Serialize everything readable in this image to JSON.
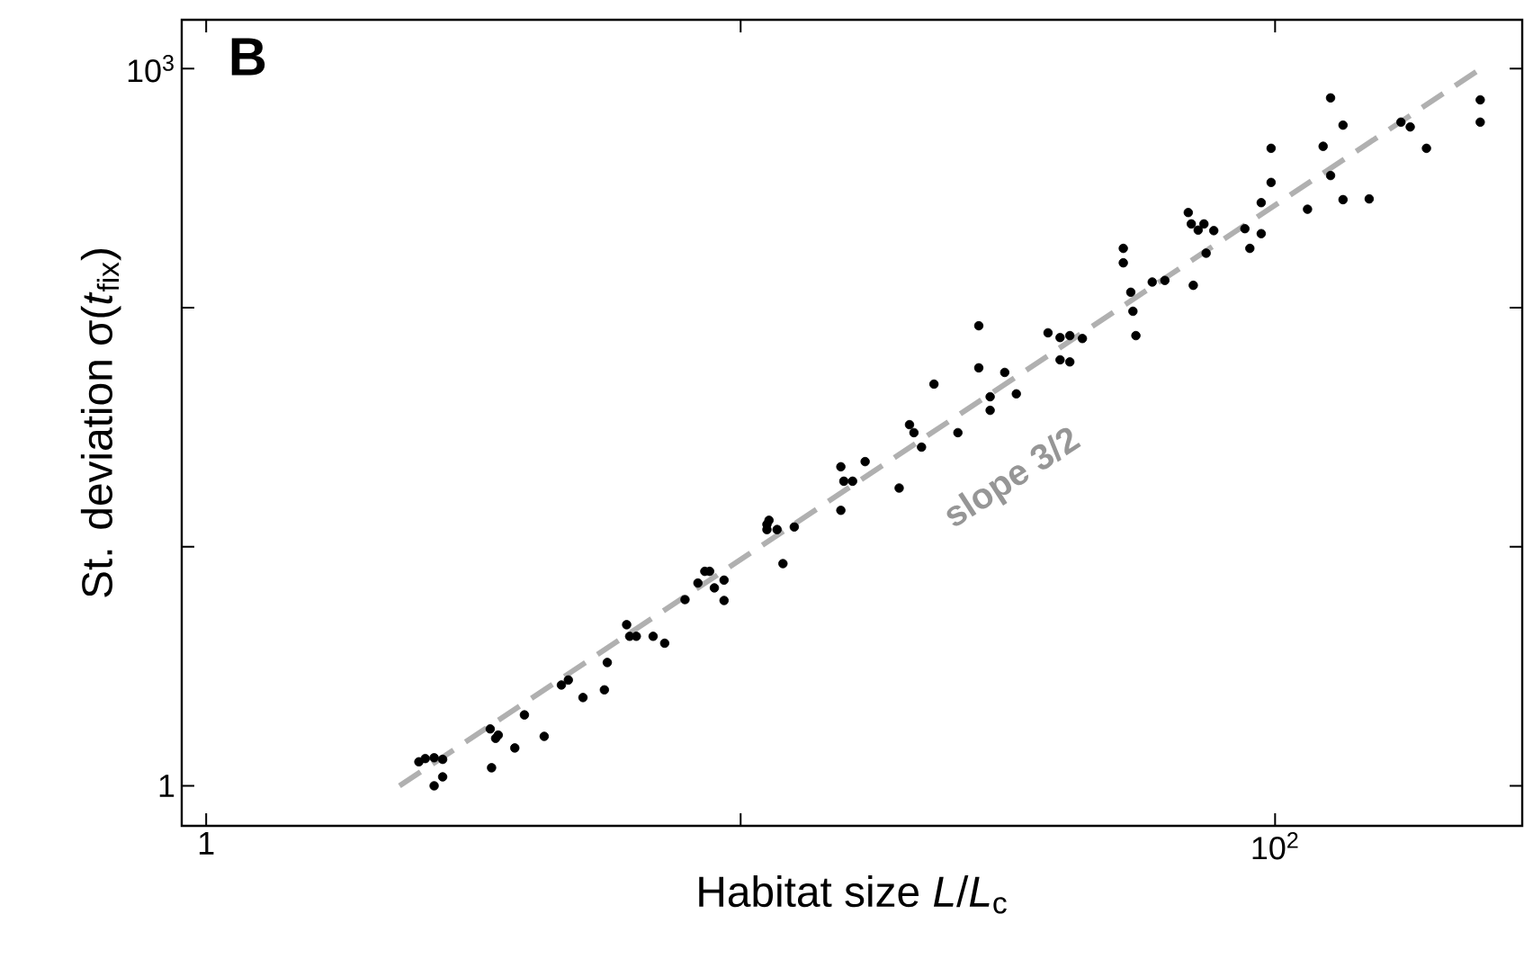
{
  "chart_data": {
    "type": "scatter",
    "title": "**B**",
    "xlabel": "Habitat size *L*/*L*$_{c}$",
    "ylabel": "St. deviation σ(*t*$_{fix}$)",
    "log": "xy",
    "xlim": [
      0.9,
      290
    ],
    "ylim": [
      0.68,
      1600
    ],
    "xticks": [
      1,
      {
        "value": 10,
        "label": null
      },
      {
        "value": 100,
        "label": "10$^{2}$"
      }
    ],
    "yticks": [
      1,
      {
        "value": 10,
        "label": null
      },
      {
        "value": 100,
        "label": null
      },
      {
        "value": 1000,
        "label": "10$^{3}$"
      }
    ],
    "annotations": [
      "slope 3/2"
    ],
    "series": [
      {
        "color": "#000000",
        "marker": "circle",
        "x": [
          2.5,
          2.57,
          2.67,
          2.77,
          2.67,
          2.77,
          3.4,
          3.42,
          3.48,
          3.52,
          3.78,
          3.94,
          4.29,
          4.62,
          4.76,
          5.07,
          5.56,
          5.63,
          6.12,
          6.2,
          6.38,
          6.86,
          7.21,
          7.87,
          8.32,
          8.57,
          8.75,
          8.93,
          9.31,
          9.31,
          11.2,
          11.2,
          11.7,
          12.0,
          12.6,
          11.3,
          15.4,
          15.6,
          16.2,
          15.4,
          17.1,
          19.8,
          20.7,
          21.1,
          21.8,
          23.0,
          25.5,
          27.9,
          27.9,
          29.3,
          29.3,
          31.2,
          32.8,
          37.6,
          39.6,
          41.3,
          43.6,
          39.6,
          41.3,
          52,
          52,
          53.7,
          54.2,
          54.9,
          58.9,
          62.2,
          68.8,
          69.7,
          71.8,
          73.6,
          76.8,
          70.3,
          74.3,
          87.8,
          89.7,
          94.2,
          94.2,
          98.3,
          98.3,
          115,
          123,
          127,
          127,
          134,
          134,
          150,
          172,
          179,
          192,
          242,
          242
        ],
        "values": [
          1.26,
          1.3,
          1.31,
          1.29,
          1.0,
          1.09,
          1.73,
          1.19,
          1.58,
          1.63,
          1.44,
          1.98,
          1.61,
          2.64,
          2.77,
          2.34,
          2.52,
          3.28,
          4.72,
          4.22,
          4.22,
          4.22,
          3.95,
          6.01,
          7.05,
          7.89,
          7.89,
          6.73,
          5.96,
          7.25,
          12.4,
          11.8,
          11.8,
          8.5,
          12.1,
          12.9,
          21.6,
          18.8,
          18.8,
          14.2,
          22.7,
          17.6,
          32.4,
          30.0,
          26.1,
          47.9,
          30.0,
          84,
          56,
          42.4,
          37.2,
          53.6,
          43.6,
          78.5,
          75,
          76.4,
          74.3,
          60.5,
          59.3,
          177,
          154,
          116,
          96.6,
          76.4,
          128,
          130,
          250,
          224,
          211,
          224,
          210,
          124,
          169,
          214,
          177,
          204,
          275,
          334,
          464,
          258,
          473,
          754,
          357,
          580,
          283,
          285,
          597,
          570,
          464,
          740,
          597
        ]
      },
      {
        "type": "line",
        "color": "#b0b0b0",
        "line_style": "dashed",
        "marker": "none",
        "x": [
          2.3,
          246
        ],
        "values": [
          1,
          1020
        ]
      }
    ]
  }
}
